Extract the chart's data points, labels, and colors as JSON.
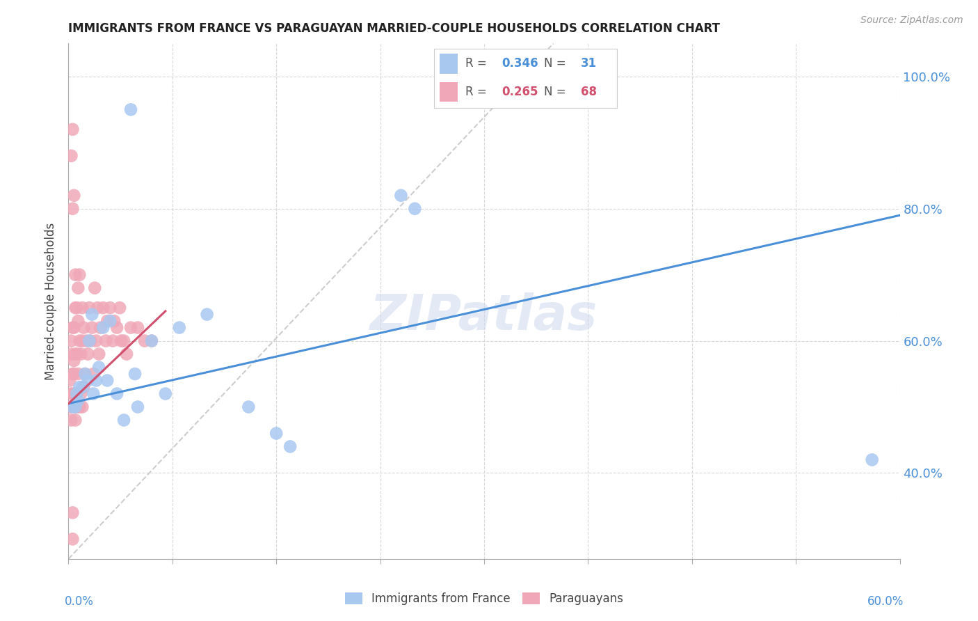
{
  "title": "IMMIGRANTS FROM FRANCE VS PARAGUAYAN MARRIED-COUPLE HOUSEHOLDS CORRELATION CHART",
  "source": "Source: ZipAtlas.com",
  "ylabel": "Married-couple Households",
  "ylabel_right_ticks": [
    "40.0%",
    "60.0%",
    "80.0%",
    "100.0%"
  ],
  "ylabel_right_vals": [
    0.4,
    0.6,
    0.8,
    1.0
  ],
  "xlim": [
    0.0,
    0.6
  ],
  "ylim": [
    0.27,
    1.05
  ],
  "blue_R": 0.346,
  "blue_N": 31,
  "pink_R": 0.265,
  "pink_N": 68,
  "blue_color": "#a8c8f0",
  "blue_line_color": "#4a90d9",
  "pink_color": "#f0a8b8",
  "pink_line_color": "#d0506e",
  "watermark": "ZIPatlas",
  "watermark_color": "#ccd8ee",
  "blue_line_x0": 0.0,
  "blue_line_y0": 0.505,
  "blue_line_x1": 0.6,
  "blue_line_y1": 0.79,
  "pink_line_x0": 0.0,
  "pink_line_y0": 0.505,
  "pink_line_x1": 0.07,
  "pink_line_y1": 0.645,
  "dash_line_x0": 0.0,
  "dash_line_y0": 0.27,
  "dash_line_x1": 0.35,
  "dash_line_y1": 1.05,
  "blue_x": [
    0.003,
    0.005,
    0.006,
    0.007,
    0.008,
    0.01,
    0.012,
    0.014,
    0.015,
    0.017,
    0.018,
    0.02,
    0.022,
    0.025,
    0.028,
    0.03,
    0.035,
    0.04,
    0.045,
    0.048,
    0.05,
    0.06,
    0.07,
    0.08,
    0.1,
    0.13,
    0.15,
    0.16,
    0.24,
    0.25,
    0.58
  ],
  "blue_y": [
    0.5,
    0.5,
    0.52,
    0.51,
    0.53,
    0.53,
    0.55,
    0.54,
    0.6,
    0.64,
    0.52,
    0.54,
    0.56,
    0.62,
    0.54,
    0.63,
    0.52,
    0.48,
    0.95,
    0.55,
    0.5,
    0.6,
    0.52,
    0.62,
    0.64,
    0.5,
    0.46,
    0.44,
    0.82,
    0.8,
    0.42
  ],
  "pink_x": [
    0.001,
    0.001,
    0.002,
    0.002,
    0.002,
    0.002,
    0.003,
    0.003,
    0.003,
    0.003,
    0.003,
    0.004,
    0.004,
    0.004,
    0.004,
    0.005,
    0.005,
    0.005,
    0.005,
    0.005,
    0.006,
    0.006,
    0.006,
    0.006,
    0.007,
    0.007,
    0.007,
    0.008,
    0.008,
    0.008,
    0.009,
    0.009,
    0.01,
    0.01,
    0.01,
    0.011,
    0.011,
    0.012,
    0.013,
    0.014,
    0.015,
    0.016,
    0.017,
    0.018,
    0.019,
    0.02,
    0.021,
    0.022,
    0.023,
    0.025,
    0.027,
    0.028,
    0.03,
    0.032,
    0.033,
    0.035,
    0.037,
    0.038,
    0.04,
    0.042,
    0.045,
    0.05,
    0.055,
    0.06,
    0.003,
    0.004,
    0.002,
    0.003
  ],
  "pink_y": [
    0.5,
    0.54,
    0.52,
    0.6,
    0.48,
    0.58,
    0.55,
    0.62,
    0.52,
    0.3,
    0.34,
    0.55,
    0.62,
    0.5,
    0.57,
    0.48,
    0.58,
    0.52,
    0.65,
    0.7,
    0.52,
    0.65,
    0.5,
    0.58,
    0.55,
    0.63,
    0.68,
    0.5,
    0.7,
    0.6,
    0.52,
    0.58,
    0.5,
    0.65,
    0.6,
    0.53,
    0.62,
    0.55,
    0.6,
    0.58,
    0.65,
    0.6,
    0.62,
    0.55,
    0.68,
    0.6,
    0.65,
    0.58,
    0.62,
    0.65,
    0.6,
    0.63,
    0.65,
    0.6,
    0.63,
    0.62,
    0.65,
    0.6,
    0.6,
    0.58,
    0.62,
    0.62,
    0.6,
    0.6,
    0.8,
    0.82,
    0.88,
    0.92
  ]
}
